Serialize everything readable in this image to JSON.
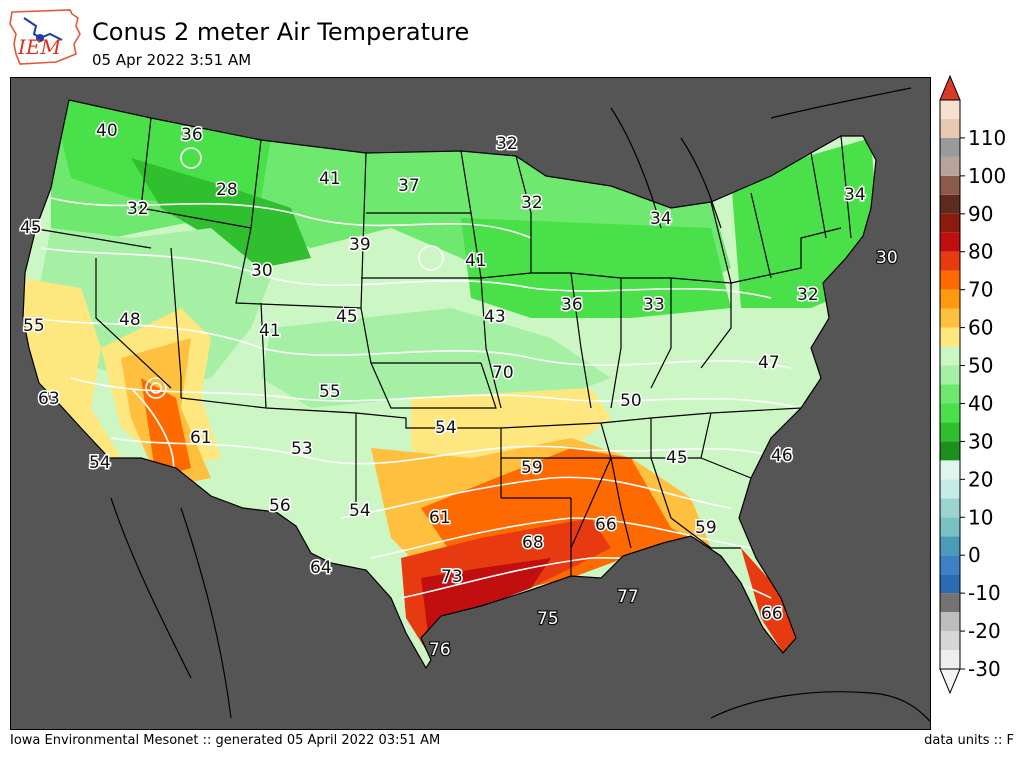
{
  "header": {
    "logo_text": "IEM",
    "title": "Conus 2 meter Air Temperature",
    "subtitle": "05 Apr 2022 3:51 AM"
  },
  "footer": {
    "left": "Iowa Environmental Mesonet :: generated 05 April 2022 03:51 AM",
    "right": "data units :: F"
  },
  "colors": {
    "background_ocean": "#555555",
    "state_lines": "#000000",
    "contour_lines": "#ffffff"
  },
  "colorbar": {
    "tick_labels": [
      "110",
      "100",
      "90",
      "80",
      "70",
      "60",
      "50",
      "40",
      "30",
      "20",
      "10",
      "0",
      "-10",
      "-20",
      "-30"
    ],
    "bins": [
      {
        "from": -30,
        "to": -25,
        "color": "#eeeeee"
      },
      {
        "from": -25,
        "to": -20,
        "color": "#d6d6d6"
      },
      {
        "from": -20,
        "to": -15,
        "color": "#bdbdbd"
      },
      {
        "from": -15,
        "to": -10,
        "color": "#737373"
      },
      {
        "from": -10,
        "to": -5,
        "color": "#2b6cb0"
      },
      {
        "from": -5,
        "to": 0,
        "color": "#3f7fc4"
      },
      {
        "from": 0,
        "to": 5,
        "color": "#4a9bb8"
      },
      {
        "from": 5,
        "to": 10,
        "color": "#7ac1c4"
      },
      {
        "from": 10,
        "to": 15,
        "color": "#9bd3d0"
      },
      {
        "from": 15,
        "to": 20,
        "color": "#c6ece8"
      },
      {
        "from": 20,
        "to": 25,
        "color": "#e0f5ee"
      },
      {
        "from": 25,
        "to": 30,
        "color": "#1d8f1d"
      },
      {
        "from": 30,
        "to": 35,
        "color": "#2fbf2f"
      },
      {
        "from": 35,
        "to": 40,
        "color": "#4ae04a"
      },
      {
        "from": 40,
        "to": 45,
        "color": "#6ee86e"
      },
      {
        "from": 45,
        "to": 50,
        "color": "#a5f0a5"
      },
      {
        "from": 50,
        "to": 55,
        "color": "#ccf7c4"
      },
      {
        "from": 55,
        "to": 60,
        "color": "#ffe780"
      },
      {
        "from": 60,
        "to": 65,
        "color": "#ffc040"
      },
      {
        "from": 65,
        "to": 70,
        "color": "#ff9a10"
      },
      {
        "from": 70,
        "to": 75,
        "color": "#ff6a00"
      },
      {
        "from": 75,
        "to": 80,
        "color": "#e83a10"
      },
      {
        "from": 80,
        "to": 85,
        "color": "#c10f0f"
      },
      {
        "from": 85,
        "to": 90,
        "color": "#8b1a0f"
      },
      {
        "from": 90,
        "to": 95,
        "color": "#5e2a1e"
      },
      {
        "from": 95,
        "to": 100,
        "color": "#8a5a4a"
      },
      {
        "from": 100,
        "to": 105,
        "color": "#b8a39a"
      },
      {
        "from": 105,
        "to": 110,
        "color": "#9a9a9a"
      },
      {
        "from": 110,
        "to": 115,
        "color": "#e8c8b0"
      },
      {
        "from": 115,
        "to": 120,
        "color": "#f8e0d0"
      }
    ]
  },
  "station_labels": [
    {
      "text": "40"
    },
    {
      "text": "36"
    },
    {
      "text": "32"
    },
    {
      "text": "28"
    },
    {
      "text": "41"
    },
    {
      "text": "37"
    },
    {
      "text": "32"
    },
    {
      "text": "32"
    },
    {
      "text": "34"
    },
    {
      "text": "34"
    },
    {
      "text": "45"
    },
    {
      "text": "39"
    },
    {
      "text": "30"
    },
    {
      "text": "41"
    },
    {
      "text": "30"
    },
    {
      "text": "55"
    },
    {
      "text": "48"
    },
    {
      "text": "41"
    },
    {
      "text": "45"
    },
    {
      "text": "43"
    },
    {
      "text": "36"
    },
    {
      "text": "33"
    },
    {
      "text": "32"
    },
    {
      "text": "47"
    },
    {
      "text": "63"
    },
    {
      "text": "55"
    },
    {
      "text": "70"
    },
    {
      "text": "50"
    },
    {
      "text": "61"
    },
    {
      "text": "54"
    },
    {
      "text": "54"
    },
    {
      "text": "53"
    },
    {
      "text": "59"
    },
    {
      "text": "45"
    },
    {
      "text": "46"
    },
    {
      "text": "56"
    },
    {
      "text": "54"
    },
    {
      "text": "61"
    },
    {
      "text": "66"
    },
    {
      "text": "59"
    },
    {
      "text": "64"
    },
    {
      "text": "68"
    },
    {
      "text": "73"
    },
    {
      "text": "77"
    },
    {
      "text": "75"
    },
    {
      "text": "66"
    },
    {
      "text": "76"
    }
  ]
}
